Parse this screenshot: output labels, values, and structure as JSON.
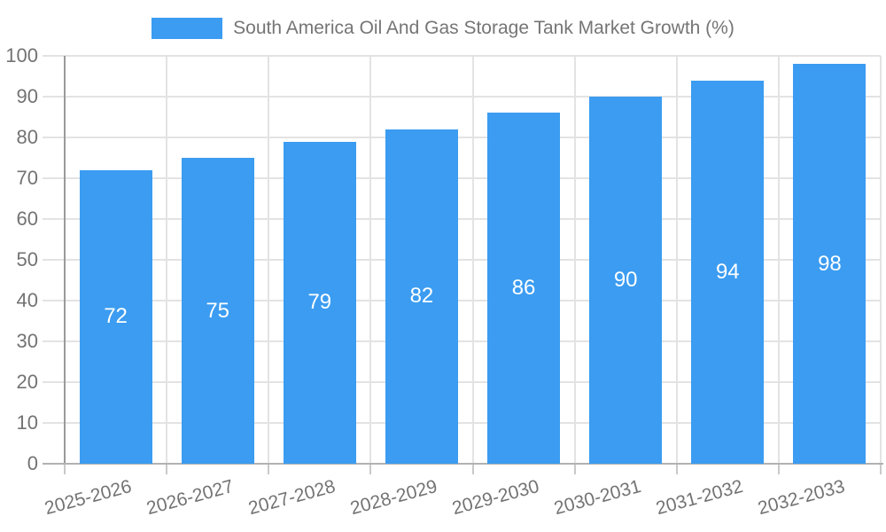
{
  "chart_data": {
    "type": "bar",
    "title": "South America Oil And Gas Storage Tank Market Growth (%)",
    "categories": [
      "2025-2026",
      "2026-2027",
      "2027-2028",
      "2028-2029",
      "2029-2030",
      "2030-2031",
      "2031-2032",
      "2032-2033"
    ],
    "values": [
      72,
      75,
      79,
      82,
      86,
      90,
      94,
      98
    ],
    "xlabel": "",
    "ylabel": "",
    "ylim": [
      0,
      100
    ],
    "yticks": [
      0,
      10,
      20,
      30,
      40,
      50,
      60,
      70,
      80,
      90,
      100
    ],
    "grid": true,
    "legend_position": "top",
    "value_label_position": "inside-center"
  },
  "colors": {
    "bar": "#3b9cf1",
    "value_label": "#ffffff",
    "grid": "#e3e3e3",
    "y_axis": "#9a9a9a",
    "x_axis": "#b2b2b2",
    "tick_text": "#737373",
    "legend_text": "#757575",
    "background": "#ffffff"
  }
}
